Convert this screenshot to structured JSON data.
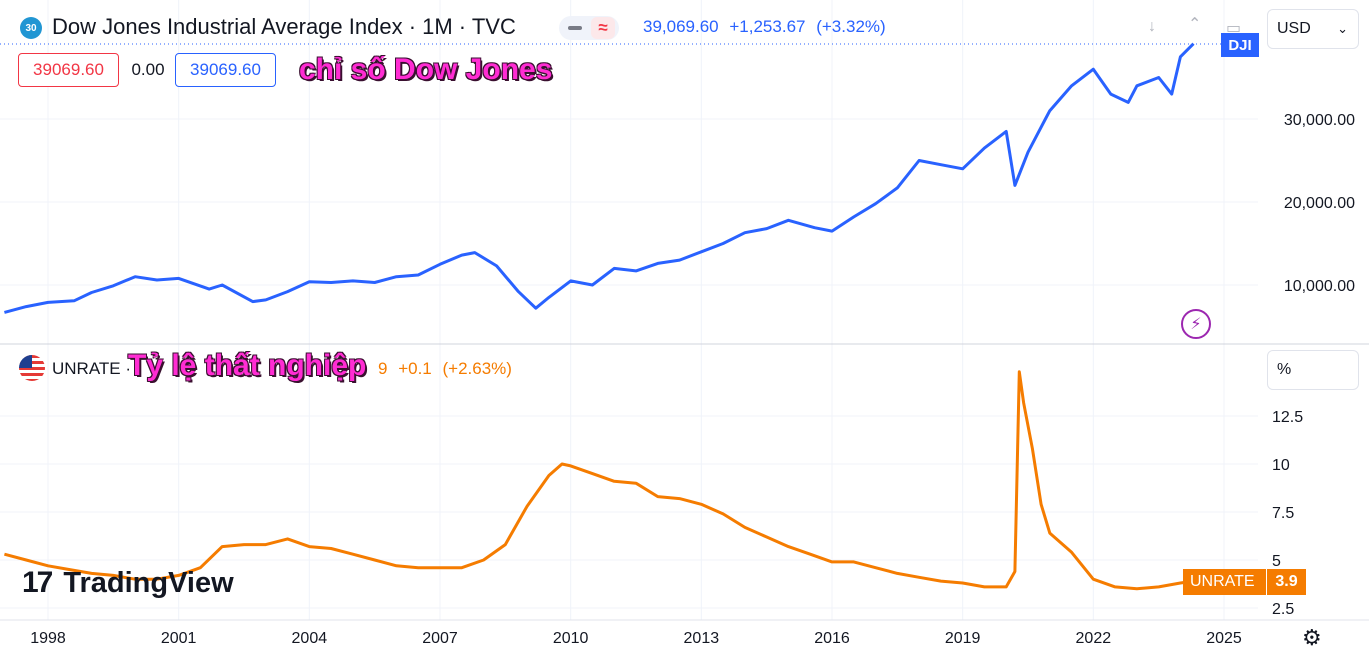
{
  "header": {
    "symbol_badge": "30",
    "title": "Dow Jones Industrial Average Index · 1M · TVC",
    "price": "39,069.60",
    "change": "+1,253.67",
    "change_pct": "(+3.32%)",
    "box_left": "39069.60",
    "box_mid": "0.00",
    "box_right": "39069.60",
    "overlay_label": "chỉ số Dow Jones",
    "currency": "USD",
    "price_tag": "DJI"
  },
  "lower": {
    "symbol": "UNRATE · ",
    "value_tail": "9",
    "change": "+0.1",
    "change_pct": "(+2.63%)",
    "overlay_label": "Tỷ lệ thất nghiệp",
    "unit": "%",
    "tag_label": "UNRATE",
    "tag_value": "3.9"
  },
  "branding": {
    "logo_mark": "17",
    "logo_text": "TradingView"
  },
  "icons": [
    "down-arrow-icon",
    "collapse-icon",
    "maximize-icon",
    "chevron-down-icon",
    "lightning-icon",
    "settings-icon",
    "us-flag-icon"
  ],
  "colors": {
    "dji": "#2962ff",
    "unrate": "#f57c00",
    "overlay": "#ff2cd3"
  },
  "x_axis": {
    "ticks": [
      "1998",
      "2001",
      "2004",
      "2007",
      "2010",
      "2013",
      "2016",
      "2019",
      "2022",
      "2025"
    ]
  },
  "chart_data": [
    {
      "type": "line",
      "series": [
        {
          "name": "DJI",
          "x": [
            1997.0,
            1997.5,
            1998.0,
            1998.6,
            1999.0,
            1999.5,
            2000.0,
            2000.5,
            2001.0,
            2001.7,
            2002.0,
            2002.7,
            2003.0,
            2003.5,
            2004.0,
            2004.5,
            2005.0,
            2005.5,
            2006.0,
            2006.5,
            2007.0,
            2007.5,
            2007.8,
            2008.3,
            2008.8,
            2009.2,
            2009.5,
            2010.0,
            2010.5,
            2011.0,
            2011.5,
            2012.0,
            2012.5,
            2013.0,
            2013.5,
            2014.0,
            2014.5,
            2015.0,
            2015.6,
            2016.0,
            2016.5,
            2017.0,
            2017.5,
            2018.0,
            2018.5,
            2019.0,
            2019.5,
            2020.0,
            2020.2,
            2020.5,
            2020.9,
            2021.0,
            2021.5,
            2022.0,
            2022.4,
            2022.8,
            2023.0,
            2023.5,
            2023.8,
            2024.0,
            2024.3
          ],
          "values": [
            6700,
            7400,
            7900,
            8100,
            9100,
            9900,
            11000,
            10600,
            10800,
            9500,
            10000,
            8000,
            8200,
            9200,
            10400,
            10300,
            10500,
            10300,
            11000,
            11200,
            12500,
            13600,
            13900,
            12300,
            9200,
            7200,
            8500,
            10500,
            10000,
            12000,
            11700,
            12600,
            13000,
            14000,
            15000,
            16300,
            16800,
            17800,
            16900,
            16500,
            18200,
            19800,
            21700,
            25000,
            24500,
            24000,
            26500,
            28500,
            22000,
            26000,
            30000,
            31000,
            34000,
            36000,
            33000,
            32000,
            34000,
            35000,
            33000,
            37500,
            39069.6
          ]
        }
      ],
      "xlim": [
        1996.8,
        2025.4
      ],
      "ylim": [
        5000,
        39069.6
      ],
      "y_ticks": [
        "10,000.00",
        "20,000.00",
        "30,000.00"
      ],
      "grid": true
    },
    {
      "type": "line",
      "series": [
        {
          "name": "UNRATE",
          "x": [
            1997.0,
            1997.5,
            1998.0,
            1998.5,
            1999.0,
            1999.5,
            2000.0,
            2000.5,
            2001.0,
            2001.5,
            2002.0,
            2002.5,
            2003.0,
            2003.5,
            2004.0,
            2004.5,
            2005.0,
            2005.5,
            2006.0,
            2006.5,
            2007.0,
            2007.5,
            2008.0,
            2008.5,
            2009.0,
            2009.5,
            2009.8,
            2010.0,
            2010.5,
            2011.0,
            2011.5,
            2012.0,
            2012.5,
            2013.0,
            2013.5,
            2014.0,
            2014.5,
            2015.0,
            2015.5,
            2016.0,
            2016.5,
            2017.0,
            2017.5,
            2018.0,
            2018.5,
            2019.0,
            2019.5,
            2020.0,
            2020.2,
            2020.3,
            2020.4,
            2020.6,
            2020.8,
            2021.0,
            2021.5,
            2022.0,
            2022.5,
            2023.0,
            2023.5,
            2024.0,
            2024.3
          ],
          "values": [
            5.3,
            5.0,
            4.7,
            4.5,
            4.3,
            4.2,
            4.0,
            4.0,
            4.2,
            4.6,
            5.7,
            5.8,
            5.8,
            6.1,
            5.7,
            5.6,
            5.3,
            5.0,
            4.7,
            4.6,
            4.6,
            4.6,
            5.0,
            5.8,
            7.8,
            9.4,
            10.0,
            9.9,
            9.5,
            9.1,
            9.0,
            8.3,
            8.2,
            7.9,
            7.4,
            6.7,
            6.2,
            5.7,
            5.3,
            4.9,
            4.9,
            4.6,
            4.3,
            4.1,
            3.9,
            3.8,
            3.6,
            3.6,
            4.4,
            14.8,
            13.2,
            10.8,
            7.9,
            6.4,
            5.4,
            4.0,
            3.6,
            3.5,
            3.6,
            3.8,
            3.9
          ]
        }
      ],
      "xlim": [
        1996.8,
        2025.4
      ],
      "ylim": [
        2.5,
        14.8
      ],
      "y_ticks": [
        "2.5",
        "5",
        "7.5",
        "10",
        "12.5"
      ],
      "grid": true
    }
  ]
}
